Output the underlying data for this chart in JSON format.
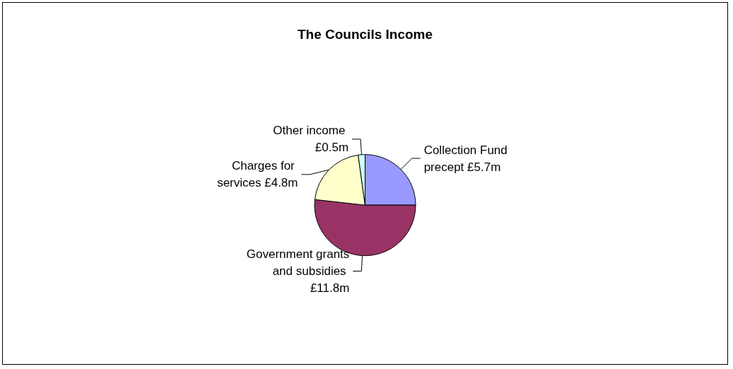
{
  "chart_data": {
    "type": "pie",
    "title": "The Councils Income",
    "categories": [
      "Collection Fund precept",
      "Government grants and subsidies",
      "Charges for services",
      "Other income"
    ],
    "values": [
      5.7,
      11.8,
      4.8,
      0.5
    ],
    "value_labels": [
      "£5.7m",
      "£11.8m",
      "£4.8m",
      "£0.5m"
    ],
    "colors": [
      "#9999ff",
      "#993366",
      "#ffffcc",
      "#ccffff"
    ],
    "legend": false
  }
}
